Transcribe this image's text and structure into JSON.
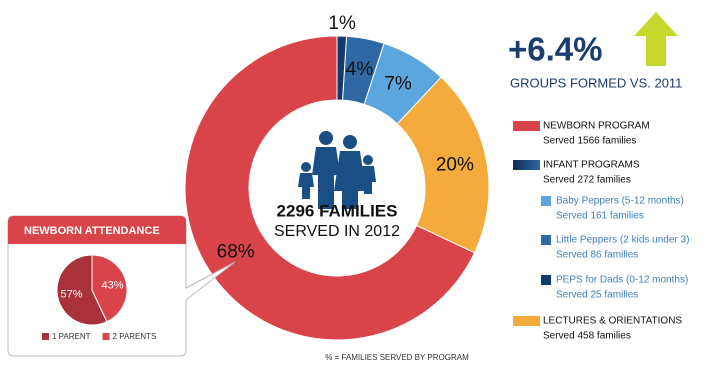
{
  "headline": {
    "value": "+6.4%",
    "label": "GROUPS FORMED VS. 2011"
  },
  "chart_data": [
    {
      "type": "donut",
      "categories": [
        "PEPS for Dads (0-12 months)",
        "Little Peppers (2 kids under 3)",
        "Baby Peppers (5-12 months)",
        "LECTURES & ORIENTATIONS",
        "NEWBORN PROGRAM"
      ],
      "details": [
        "Served 25 families",
        "Served 86 families",
        "Served 161 families",
        "Served 458 families",
        "Served 1566 families"
      ],
      "values": [
        1,
        4,
        7,
        20,
        68
      ],
      "value_labels": [
        "1%",
        "4%",
        "7%",
        "20%",
        "68%"
      ],
      "colors": [
        "#123a6b",
        "#2f68a3",
        "#5aa6dd",
        "#f5ab3b",
        "#d9444a"
      ],
      "legend_group": {
        "name": "INFANT PROGRAMS",
        "detail": "Served 272 families"
      },
      "center_title": "2296 FAMILIES",
      "center_subtitle": "SERVED IN 2012",
      "note": "% = FAMILIES SERVED BY PROGRAM"
    },
    {
      "type": "pie",
      "title": "NEWBORN ATTENDANCE",
      "categories": [
        "1 PARENT",
        "2 PARENTS"
      ],
      "values": [
        57,
        43
      ],
      "value_labels": [
        "57%",
        "43%"
      ],
      "colors": [
        "#a8313a",
        "#d9444a"
      ]
    }
  ]
}
